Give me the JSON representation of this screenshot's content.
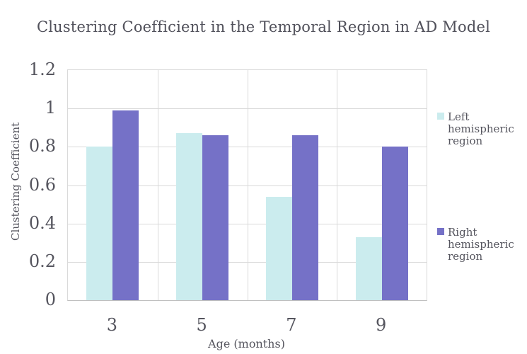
{
  "title": "Clustering Coefficient in the Temporal Region in AD Model",
  "colors": {
    "left_series": "#cbecee",
    "right_series": "#7571c7",
    "gridline": "#d9d9d9",
    "axis_line": "#bfbfbf",
    "text": "#55555e"
  },
  "chart_data": {
    "type": "bar",
    "title": "Clustering Coefficient in the Temporal Region in AD Model",
    "categories": [
      "3",
      "5",
      "7",
      "9"
    ],
    "series": [
      {
        "name": "Left hemispheric region",
        "color": "#cbecee",
        "values": [
          0.8,
          0.87,
          0.54,
          0.33
        ]
      },
      {
        "name": "Right hemispheric region",
        "color": "#7571c7",
        "values": [
          0.99,
          0.86,
          0.86,
          0.8
        ]
      }
    ],
    "xlabel": "Age (months)",
    "ylabel": "Clustering Coefficient",
    "ylim": [
      0,
      1.2
    ],
    "ytick_step": 0.2,
    "yticks": [
      "0",
      "0.2",
      "0.4",
      "0.6",
      "0.8",
      "1",
      "1.2"
    ],
    "grid": true,
    "legend_position": "right",
    "legend_items": [
      {
        "label": "Left hemispheric region",
        "color": "#cbecee"
      },
      {
        "label": "Right hemispheric region",
        "color": "#7571c7"
      }
    ]
  }
}
